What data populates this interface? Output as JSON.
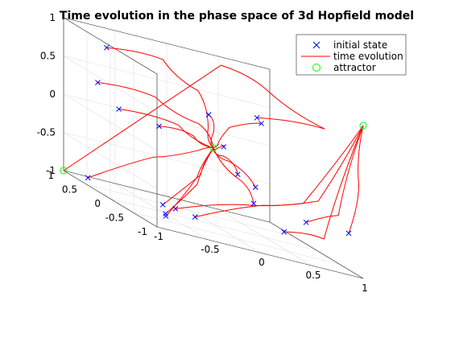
{
  "chart_data": {
    "type": "line3d",
    "title": "Time evolution in the phase space of 3d Hopfield model",
    "xlim": [
      -1,
      1
    ],
    "ylim": [
      -1,
      1
    ],
    "zlim": [
      -1,
      1
    ],
    "grid": true,
    "x_ticks": [
      "-1",
      "-0.5",
      "0",
      "0.5",
      "1"
    ],
    "y_ticks": [
      "-1",
      "-0.5",
      "0",
      "0.5",
      "1"
    ],
    "z_ticks": [
      "-1",
      "-0.5",
      "0",
      "0.5",
      "1"
    ],
    "legend": {
      "position": "top-right",
      "entries": [
        {
          "label": "initial state",
          "marker": "x",
          "color": "#0000ff"
        },
        {
          "label": "time evolution",
          "marker": "line",
          "color": "#ff0000"
        },
        {
          "label": "attractor",
          "marker": "o",
          "color": "#00ff00"
        }
      ]
    },
    "attractors": [
      [
        1,
        -1,
        1
      ],
      [
        -1,
        1,
        -1
      ],
      [
        0,
        0,
        0
      ]
    ],
    "trajectories": [
      {
        "start": [
          -0.9,
          0.3,
          0.9
        ],
        "path": [
          [
            -0.9,
            0.3,
            0.9
          ],
          [
            -0.4,
            0.2,
            0.95
          ],
          [
            -0.15,
            0.0,
            0.7
          ],
          [
            -0.05,
            0.0,
            0.25
          ],
          [
            0,
            0,
            0
          ]
        ]
      },
      {
        "start": [
          -0.85,
          0.6,
          0.35
        ],
        "path": [
          [
            -0.85,
            0.6,
            0.35
          ],
          [
            -0.4,
            0.35,
            0.4
          ],
          [
            -0.1,
            0.1,
            0.25
          ],
          [
            0,
            0,
            0
          ]
        ]
      },
      {
        "start": [
          -0.6,
          0.7,
          0.05
        ],
        "path": [
          [
            -0.6,
            0.7,
            0.05
          ],
          [
            -0.2,
            0.3,
            0.12
          ],
          [
            0,
            0,
            0
          ]
        ]
      },
      {
        "start": [
          -0.3,
          0.5,
          0.0
        ],
        "path": [
          [
            -0.3,
            0.5,
            0.0
          ],
          [
            -0.1,
            0.2,
            0.05
          ],
          [
            0,
            0,
            0
          ]
        ]
      },
      {
        "start": [
          0.0,
          0.1,
          0.4
        ],
        "path": [
          [
            0.0,
            0.1,
            0.4
          ],
          [
            0.0,
            0.0,
            0.2
          ],
          [
            0,
            0,
            0
          ]
        ]
      },
      {
        "start": [
          0.1,
          0.0,
          0.05
        ],
        "path": [
          [
            0.1,
            0.0,
            0.05
          ],
          [
            0.05,
            0.0,
            0.02
          ],
          [
            0,
            0,
            0
          ]
        ]
      },
      {
        "start": [
          0.4,
          -0.05,
          0.55
        ],
        "path": [
          [
            0.4,
            -0.05,
            0.55
          ],
          [
            0.9,
            -0.4,
            0.7
          ],
          [
            0.6,
            0.2,
            0.9
          ],
          [
            0.3,
            0.5,
            1.0
          ],
          [
            -1,
            1,
            -1
          ]
        ]
      },
      {
        "start": [
          0.42,
          -0.1,
          0.5
        ],
        "path": [
          [
            0.42,
            -0.1,
            0.5
          ],
          [
            0.2,
            0.1,
            0.3
          ],
          [
            0.05,
            0.02,
            0.05
          ],
          [
            0,
            0,
            0
          ]
        ]
      },
      {
        "start": [
          0.1,
          -0.3,
          -0.2
        ],
        "path": [
          [
            0.1,
            -0.3,
            -0.2
          ],
          [
            0.05,
            -0.1,
            -0.05
          ],
          [
            0,
            0,
            0
          ]
        ]
      },
      {
        "start": [
          0.25,
          -0.35,
          -0.3
        ],
        "path": [
          [
            0.25,
            -0.35,
            -0.3
          ],
          [
            0.1,
            -0.1,
            -0.1
          ],
          [
            0,
            0,
            0
          ]
        ]
      },
      {
        "start": [
          0.3,
          -0.2,
          -0.55
        ],
        "path": [
          [
            0.3,
            -0.2,
            -0.55
          ],
          [
            0.2,
            -0.1,
            -0.3
          ],
          [
            0,
            0,
            0
          ]
        ]
      },
      {
        "start": [
          0.55,
          -0.3,
          -0.8
        ],
        "path": [
          [
            0.55,
            -0.3,
            -0.8
          ],
          [
            0.8,
            -0.6,
            -0.7
          ],
          [
            1,
            -1,
            1
          ]
        ]
      },
      {
        "start": [
          0.65,
          -0.55,
          -0.55
        ],
        "path": [
          [
            0.65,
            -0.55,
            -0.55
          ],
          [
            0.85,
            -0.8,
            -0.3
          ],
          [
            1,
            -1,
            1
          ]
        ]
      },
      {
        "start": [
          0.95,
          -0.8,
          -0.5
        ],
        "path": [
          [
            0.95,
            -0.8,
            -0.5
          ],
          [
            0.98,
            -0.95,
            0.2
          ],
          [
            1,
            -1,
            1
          ]
        ]
      },
      {
        "start": [
          -0.9,
          0.7,
          -0.95
        ],
        "path": [
          [
            -0.9,
            0.7,
            -0.95
          ],
          [
            -0.4,
            0.4,
            -0.4
          ],
          [
            -0.1,
            0.1,
            -0.1
          ],
          [
            0,
            0,
            0
          ]
        ]
      },
      {
        "start": [
          -0.4,
          0.2,
          -0.95
        ],
        "path": [
          [
            -0.4,
            0.2,
            -0.95
          ],
          [
            -0.1,
            0.05,
            -0.4
          ],
          [
            0,
            0,
            0
          ]
        ]
      },
      {
        "start": [
          -0.3,
          0.15,
          -0.95
        ],
        "path": [
          [
            -0.3,
            0.15,
            -0.95
          ],
          [
            0.2,
            -0.2,
            -0.6
          ],
          [
            0.6,
            -0.6,
            -0.3
          ],
          [
            1,
            -1,
            1
          ]
        ]
      },
      {
        "start": [
          -0.2,
          -0.05,
          -0.95
        ],
        "path": [
          [
            -0.2,
            -0.05,
            -0.95
          ],
          [
            0.3,
            -0.4,
            -0.5
          ],
          [
            0.7,
            -0.7,
            -0.2
          ],
          [
            1,
            -1,
            1
          ]
        ]
      },
      {
        "start": [
          -0.6,
          -0.3,
          -0.95
        ],
        "path": [
          [
            -0.6,
            -0.3,
            -0.95
          ],
          [
            -0.2,
            -0.1,
            -0.5
          ],
          [
            0,
            0,
            0
          ]
        ]
      },
      {
        "start": [
          -0.62,
          -0.35,
          -0.97
        ],
        "path": [
          [
            -0.62,
            -0.35,
            -0.97
          ],
          [
            -0.2,
            -0.1,
            -0.4
          ],
          [
            0,
            0,
            0
          ]
        ]
      }
    ]
  }
}
